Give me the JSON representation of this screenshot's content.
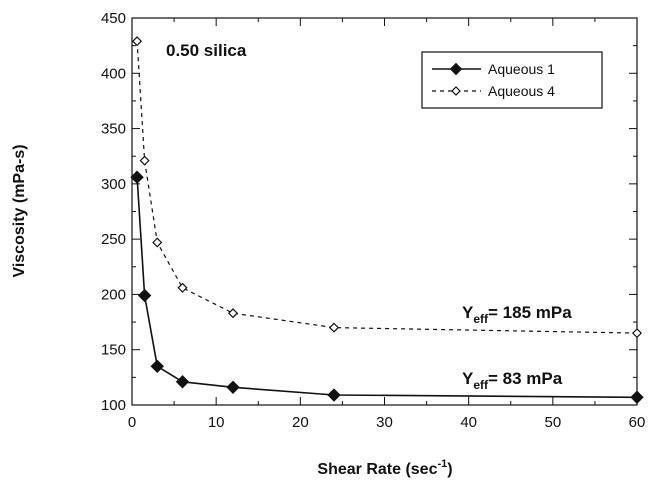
{
  "chart_data": {
    "type": "line",
    "title": "",
    "annotation": "0.50 silica",
    "xlabel": {
      "main": "Shear Rate (sec",
      "superscript": "-1",
      "suffix": ")"
    },
    "ylabel": "Viscosity (mPa-s)",
    "xlim": [
      0,
      60
    ],
    "ylim": [
      100,
      450
    ],
    "xticks": [
      0,
      10,
      20,
      30,
      40,
      50,
      60
    ],
    "yticks": [
      100,
      150,
      200,
      250,
      300,
      350,
      400,
      450
    ],
    "grid": false,
    "legend": {
      "placement": "top-right",
      "entries": [
        "Aqueous 1",
        "Aqueous 4"
      ]
    },
    "series": [
      {
        "name": "Aqueous 1",
        "color": "#111111",
        "line_style": "solid",
        "marker": "filled-diamond",
        "x": [
          0.6,
          1.5,
          3,
          6,
          12,
          24,
          60
        ],
        "y": [
          306,
          199,
          135,
          121,
          116,
          109,
          107
        ]
      },
      {
        "name": "Aqueous 4",
        "color": "#111111",
        "line_style": "dashed",
        "marker": "open-diamond",
        "x": [
          0.6,
          1.5,
          3,
          6,
          12,
          24,
          60
        ],
        "y": [
          429,
          321,
          247,
          206,
          183,
          170,
          165
        ]
      }
    ],
    "yield_labels": [
      {
        "prefix": "Y",
        "subscript": "eff",
        "value_text": "= 185 mPa"
      },
      {
        "prefix": "Y",
        "subscript": "eff",
        "value_text": "= 83 mPa"
      }
    ]
  }
}
